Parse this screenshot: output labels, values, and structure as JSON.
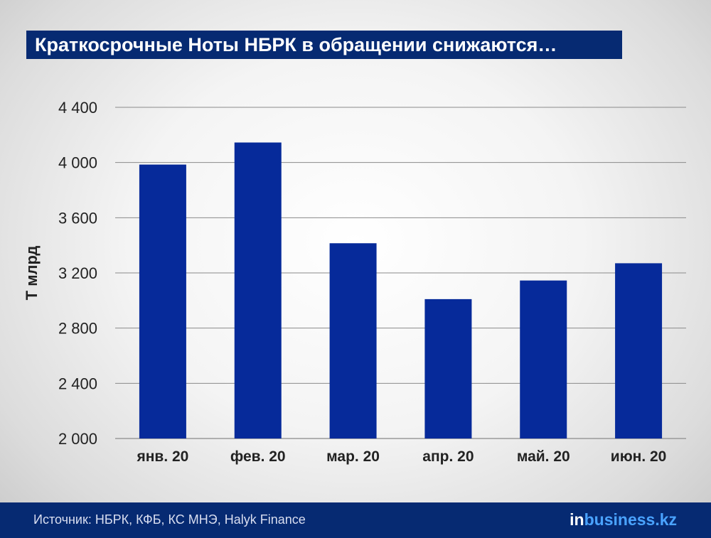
{
  "title": "Краткосрочные Ноты НБРК в обращении снижаются…",
  "footer": {
    "source": "Источник: НБРК, КФБ, КС МНЭ, Halyk Finance",
    "logo_in": "in",
    "logo_rest": "business.kz"
  },
  "colors": {
    "bar": "#062a9a",
    "accent": "#062a72",
    "logo_accent": "#4aa3ff"
  },
  "chart_data": {
    "type": "bar",
    "categories": [
      "янв. 20",
      "фев. 20",
      "мар. 20",
      "апр. 20",
      "май. 20",
      "июн. 20"
    ],
    "values": [
      3985,
      4145,
      3415,
      3010,
      3145,
      3270
    ],
    "title": "",
    "xlabel": "",
    "ylabel": "Т млрд",
    "ylim": [
      2000,
      4400
    ],
    "yticks": [
      2000,
      2400,
      2800,
      3200,
      3600,
      4000,
      4400
    ],
    "ytick_labels": [
      "2 000",
      "2 400",
      "2 800",
      "3 200",
      "3 600",
      "4 000",
      "4 400"
    ],
    "grid": true,
    "legend": "none"
  }
}
